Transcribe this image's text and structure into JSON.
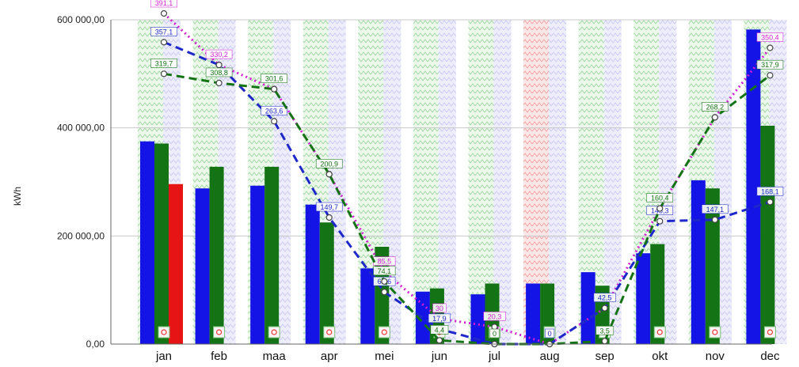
{
  "chart_data": {
    "type": "bar",
    "ylabel": "kWh",
    "ylim": [
      0,
      600000
    ],
    "yticks": [
      "0,00",
      "200 000,00",
      "400 000,00",
      "600 000,00"
    ],
    "ytick_values": [
      0,
      200000,
      400000,
      600000
    ],
    "grid": true,
    "categories": [
      "jan",
      "feb",
      "maa",
      "apr",
      "mei",
      "jun",
      "jul",
      "aug",
      "sep",
      "okt",
      "nov",
      "dec"
    ],
    "background_bands": [
      "green",
      "green",
      "green",
      "green",
      "green",
      "green",
      "green",
      "red",
      "green",
      "green",
      "green",
      "green"
    ],
    "series": [
      {
        "color": "#1414e6",
        "values": [
          375000,
          288000,
          293000,
          258000,
          140000,
          97000,
          92000,
          112000,
          133000,
          168000,
          303000,
          582000
        ]
      },
      {
        "color": "#147314",
        "values": [
          371000,
          328000,
          328000,
          225000,
          180000,
          103000,
          112000,
          112000,
          108000,
          185000,
          288000,
          404000
        ]
      },
      {
        "color": "#e61414",
        "values": [
          296000,
          null,
          null,
          null,
          null,
          null,
          null,
          null,
          null,
          null,
          null,
          null
        ]
      }
    ],
    "line_series": [
      {
        "color": "#d21ed2",
        "style": "dotted",
        "values": [
          391.1,
          330.2,
          301.6,
          200.9,
          85.5,
          30,
          20.3,
          0,
          42.5,
          160.4,
          268.2,
          350.4
        ],
        "labels": [
          "391,1",
          "330,2",
          "",
          "",
          "85,5",
          "30",
          "20,3",
          "",
          "",
          "",
          "",
          "350,4"
        ]
      },
      {
        "color": "#1e28c8",
        "style": "dashed",
        "values": [
          357.1,
          330.2,
          263.6,
          149.7,
          61.6,
          17.9,
          0,
          0,
          42.5,
          145.3,
          147.1,
          168.1
        ],
        "labels": [
          "357,1",
          "",
          "263,6",
          "149,7",
          "61,6",
          "17,9",
          "",
          "0",
          "42,5",
          "145,3",
          "147,1",
          "168,1"
        ]
      },
      {
        "color": "#147314",
        "style": "dashed",
        "values": [
          319.7,
          308.8,
          301.6,
          200.9,
          74.1,
          4.4,
          0,
          0,
          3.5,
          160.4,
          268.2,
          317.9
        ],
        "labels": [
          "319,7",
          "308,8",
          "301,6",
          "200,9",
          "74,1",
          "4,4",
          "0",
          "",
          "3,5",
          "160,4",
          "268,2",
          "317,9"
        ]
      }
    ]
  }
}
